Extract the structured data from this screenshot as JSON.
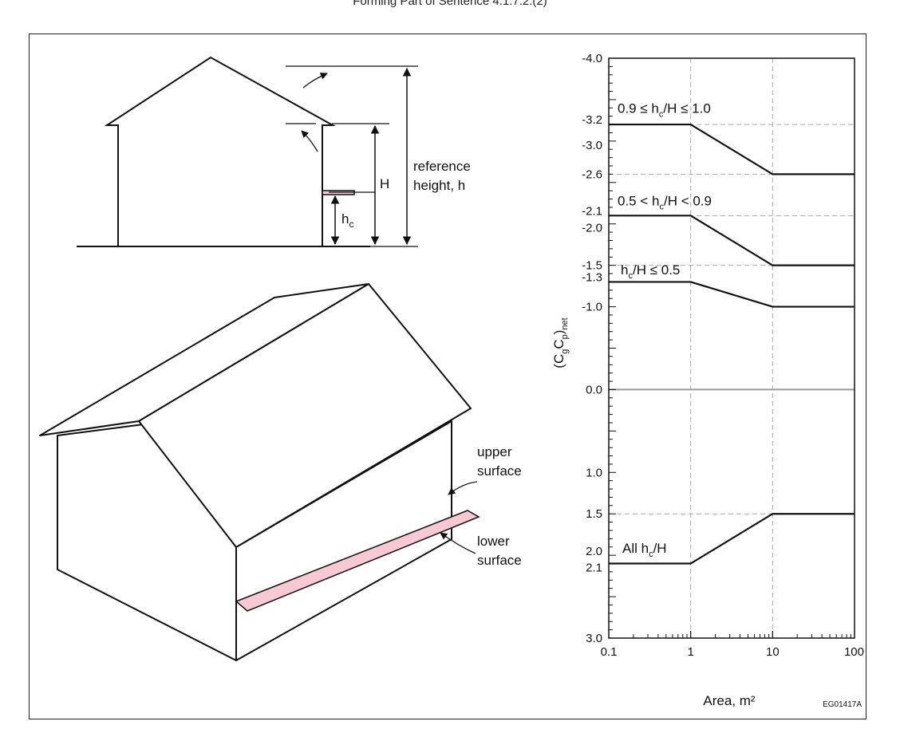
{
  "header": {
    "text": "Forming Part of Sentence 4.1.7.2.(2)"
  },
  "elevation": {
    "h_label": "H",
    "hc_label": "h",
    "hc_sub": "c",
    "reference_line1": "reference",
    "reference_line2": "height, h"
  },
  "isometric": {
    "upper_line1": "upper",
    "upper_line2": "surface",
    "lower_line1": "lower",
    "lower_line2": "surface",
    "canopy_color": "#f7c9d3"
  },
  "chart_data": {
    "type": "line",
    "x_scale": "log",
    "xlim": [
      0.1,
      100
    ],
    "x_ticks": [
      "0.1",
      "1",
      "10",
      "100"
    ],
    "xlabel": "Area, m²",
    "ylabel": "(CgCp)net",
    "ylim": [
      -4.0,
      3.0
    ],
    "y_inverted": true,
    "y_tick_labels": [
      "-4.0",
      "-3.2",
      "-3.0",
      "-2.6",
      "-2.1",
      "-2.0",
      "-1.5",
      "-1.3",
      "-1.0",
      "0.0",
      "1.0",
      "1.5",
      "2.0",
      "2.1",
      "3.0"
    ],
    "series": [
      {
        "name": "0.9 ≤ hc/H ≤ 1.0",
        "x": [
          0.1,
          1,
          10,
          100
        ],
        "y": [
          -3.2,
          -3.2,
          -2.6,
          -2.6
        ]
      },
      {
        "name": "0.5 < hc/H < 0.9",
        "x": [
          0.1,
          1,
          10,
          100
        ],
        "y": [
          -2.1,
          -2.1,
          -1.5,
          -1.5
        ]
      },
      {
        "name": "hc/H ≤ 0.5",
        "x": [
          0.1,
          1,
          10,
          100
        ],
        "y": [
          -1.3,
          -1.3,
          -1.0,
          -1.0
        ]
      },
      {
        "name": "All hc/H",
        "x": [
          0.1,
          1,
          10,
          100
        ],
        "y": [
          2.1,
          2.1,
          1.5,
          1.5
        ]
      }
    ],
    "curve_labels": [
      {
        "pre": "0.9 ≤ h",
        "sub": "c",
        "post": "/H ≤ 1.0"
      },
      {
        "pre": "0.5 < h",
        "sub": "c",
        "post": "/H < 0.9"
      },
      {
        "pre": "h",
        "sub": "c",
        "post": "/H ≤ 0.5"
      },
      {
        "pre": "All h",
        "sub": "c",
        "post": "/H"
      }
    ],
    "figure_code": "EG01417A"
  }
}
